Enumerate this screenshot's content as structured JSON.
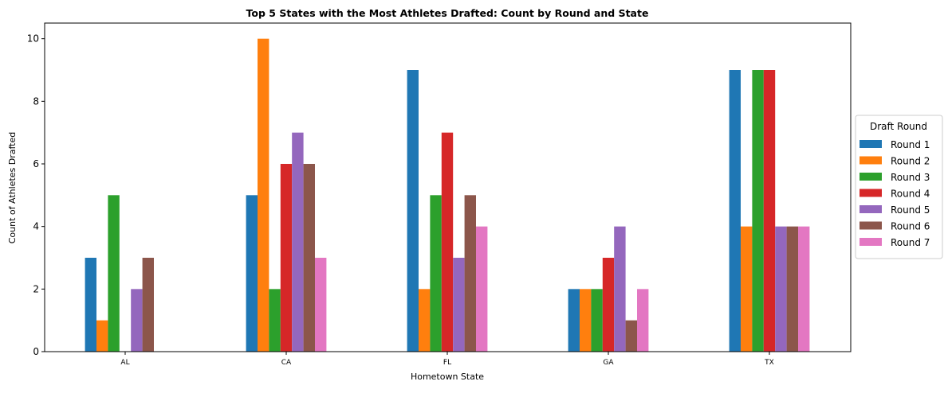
{
  "chart_data": {
    "type": "bar",
    "title": "Top 5 States with the Most Athletes Drafted: Count by Round and State",
    "xlabel": "Hometown State",
    "ylabel": "Count of Athletes Drafted",
    "categories": [
      "AL",
      "CA",
      "FL",
      "GA",
      "TX"
    ],
    "ylim": [
      0,
      10.5
    ],
    "yticks": [
      0,
      2,
      4,
      6,
      8,
      10
    ],
    "grid": false,
    "legend": {
      "title": "Draft Round",
      "placement": "center-right-outside"
    },
    "series": [
      {
        "name": "Round 1",
        "color": "#1f77b4",
        "values": [
          3,
          5,
          9,
          2,
          9
        ]
      },
      {
        "name": "Round 2",
        "color": "#ff7f0e",
        "values": [
          1,
          10,
          2,
          2,
          4
        ]
      },
      {
        "name": "Round 3",
        "color": "#2ca02c",
        "values": [
          5,
          2,
          5,
          2,
          9
        ]
      },
      {
        "name": "Round 4",
        "color": "#d62728",
        "values": [
          0,
          6,
          7,
          3,
          9
        ]
      },
      {
        "name": "Round 5",
        "color": "#9467bd",
        "values": [
          2,
          7,
          3,
          4,
          4
        ]
      },
      {
        "name": "Round 6",
        "color": "#8c564b",
        "values": [
          3,
          6,
          5,
          1,
          4
        ]
      },
      {
        "name": "Round 7",
        "color": "#e377c2",
        "values": [
          0,
          3,
          4,
          2,
          4
        ]
      }
    ]
  }
}
